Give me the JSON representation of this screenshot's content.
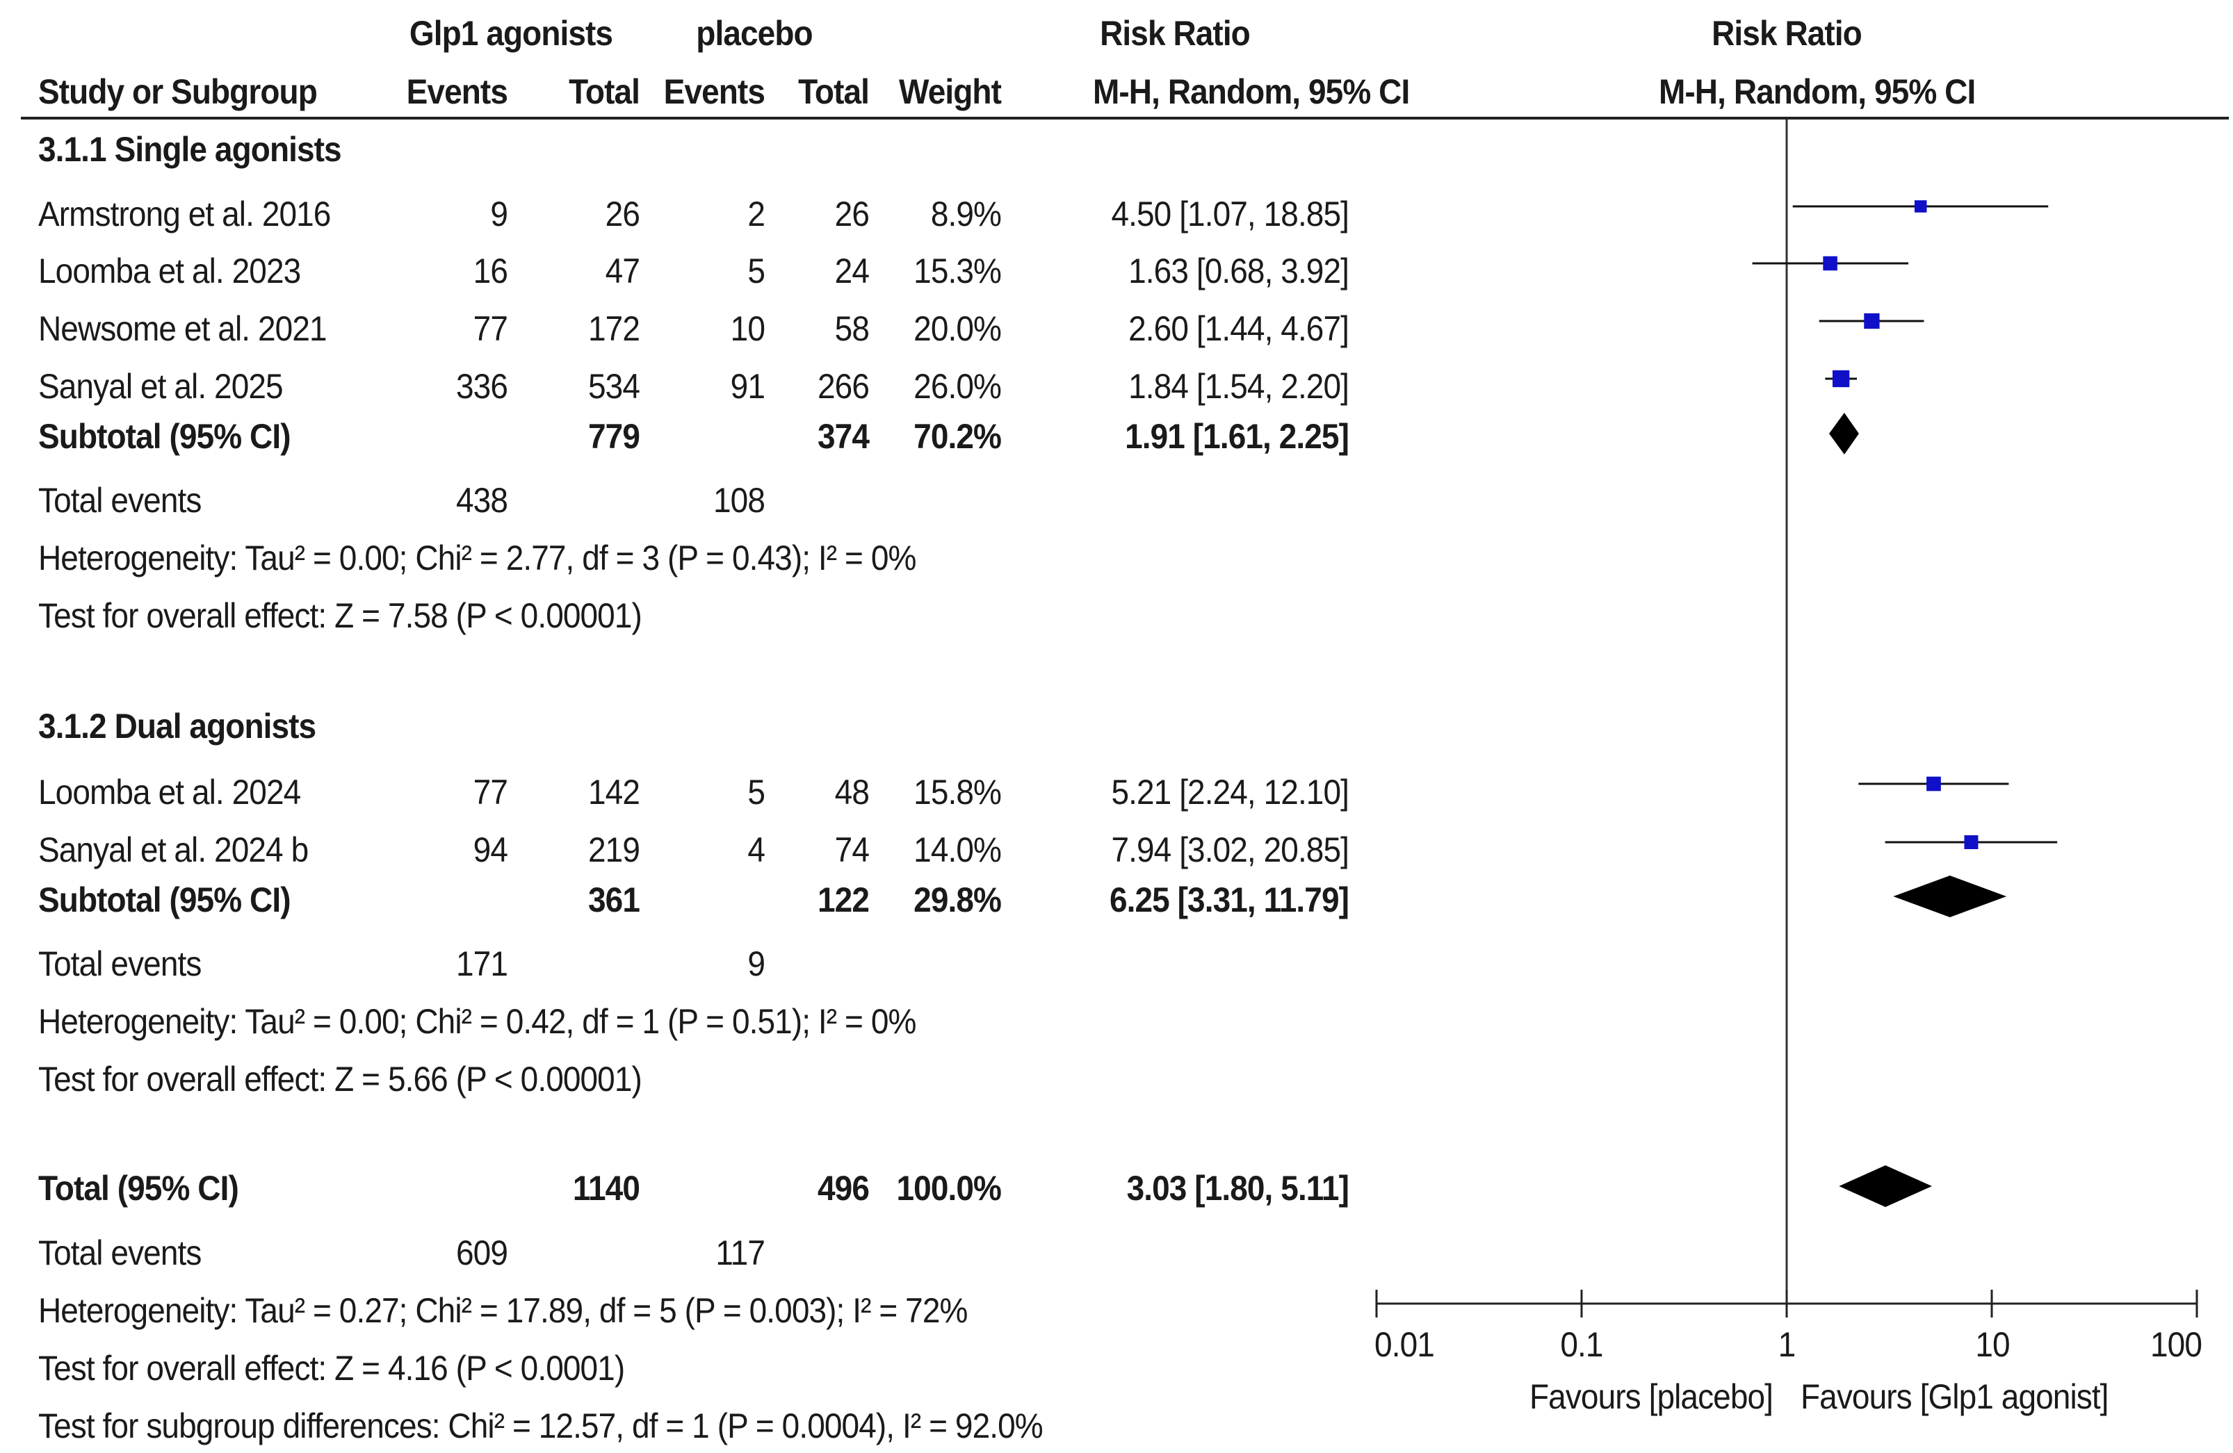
{
  "header": {
    "group1_label": "Glp1 agonists",
    "group2_label": "placebo",
    "effect_label": "Risk Ratio",
    "plot_label": "Risk Ratio",
    "col_study": "Study or Subgroup",
    "col_events1": "Events",
    "col_total1": "Total",
    "col_events2": "Events",
    "col_total2": "Total",
    "col_weight": "Weight",
    "col_method": "M-H, Random, 95% CI",
    "plot_method": "M-H, Random, 95% CI"
  },
  "subgroup1": {
    "title": "3.1.1 Single agonists",
    "studies": [
      {
        "study": "Armstrong et al. 2016",
        "e1": "9",
        "t1": "26",
        "e2": "2",
        "t2": "26",
        "weight": "8.9%",
        "ci": "4.50 [1.07, 18.85]"
      },
      {
        "study": "Loomba et al. 2023",
        "e1": "16",
        "t1": "47",
        "e2": "5",
        "t2": "24",
        "weight": "15.3%",
        "ci": "1.63 [0.68, 3.92]"
      },
      {
        "study": "Newsome et al. 2021",
        "e1": "77",
        "t1": "172",
        "e2": "10",
        "t2": "58",
        "weight": "20.0%",
        "ci": "2.60 [1.44, 4.67]"
      },
      {
        "study": "Sanyal et al. 2025",
        "e1": "336",
        "t1": "534",
        "e2": "91",
        "t2": "266",
        "weight": "26.0%",
        "ci": "1.84 [1.54, 2.20]"
      }
    ],
    "subtotal": {
      "label": "Subtotal (95% CI)",
      "t1": "779",
      "t2": "374",
      "weight": "70.2%",
      "ci": "1.91 [1.61, 2.25]"
    },
    "events": {
      "label": "Total events",
      "e1": "438",
      "e2": "108"
    },
    "heterogeneity": "Heterogeneity: Tau² = 0.00; Chi² = 2.77, df = 3 (P = 0.43); I² = 0%",
    "overall": "Test for overall effect: Z = 7.58 (P < 0.00001)"
  },
  "subgroup2": {
    "title": "3.1.2 Dual agonists",
    "studies": [
      {
        "study": "Loomba et al. 2024",
        "e1": "77",
        "t1": "142",
        "e2": "5",
        "t2": "48",
        "weight": "15.8%",
        "ci": "5.21 [2.24, 12.10]"
      },
      {
        "study": "Sanyal et al. 2024 b",
        "e1": "94",
        "t1": "219",
        "e2": "4",
        "t2": "74",
        "weight": "14.0%",
        "ci": "7.94 [3.02, 20.85]"
      }
    ],
    "subtotal": {
      "label": "Subtotal (95% CI)",
      "t1": "361",
      "t2": "122",
      "weight": "29.8%",
      "ci": "6.25 [3.31, 11.79]"
    },
    "events": {
      "label": "Total events",
      "e1": "171",
      "e2": "9"
    },
    "heterogeneity": "Heterogeneity: Tau² = 0.00; Chi² = 0.42, df = 1 (P = 0.51); I² = 0%",
    "overall": "Test for overall effect: Z = 5.66 (P < 0.00001)"
  },
  "total": {
    "label": "Total (95% CI)",
    "t1": "1140",
    "t2": "496",
    "weight": "100.0%",
    "ci": "3.03 [1.80, 5.11]",
    "events": {
      "label": "Total events",
      "e1": "609",
      "e2": "117"
    },
    "heterogeneity": "Heterogeneity: Tau² = 0.27; Chi² = 17.89, df = 5 (P = 0.003); I² = 72%",
    "overall": "Test for overall effect: Z = 4.16 (P < 0.0001)",
    "subgroup_diff": "Test for subgroup differences: Chi² = 12.57, df = 1 (P = 0.0004), I² = 92.0%"
  },
  "chart_data": {
    "type": "forest",
    "scale": "log",
    "xlim": [
      0.01,
      100
    ],
    "ticks": [
      0.01,
      0.1,
      1,
      10,
      100
    ],
    "tick_labels": [
      "0.01",
      "0.1",
      "1",
      "10",
      "100"
    ],
    "reference_line": 1,
    "favours_left": "Favours [placebo]",
    "favours_right": "Favours [Glp1 agonist]",
    "studies": [
      {
        "name": "Armstrong et al. 2016",
        "rr": 4.5,
        "lo": 1.07,
        "hi": 18.85,
        "weight": 8.9,
        "row": 0
      },
      {
        "name": "Loomba et al. 2023",
        "rr": 1.63,
        "lo": 0.68,
        "hi": 3.92,
        "weight": 15.3,
        "row": 1
      },
      {
        "name": "Newsome et al. 2021",
        "rr": 2.6,
        "lo": 1.44,
        "hi": 4.67,
        "weight": 20.0,
        "row": 2
      },
      {
        "name": "Sanyal et al. 2025",
        "rr": 1.84,
        "lo": 1.54,
        "hi": 2.2,
        "weight": 26.0,
        "row": 3
      },
      {
        "name": "Loomba et al. 2024",
        "rr": 5.21,
        "lo": 2.24,
        "hi": 12.1,
        "weight": 15.8,
        "row": 5
      },
      {
        "name": "Sanyal et al. 2024 b",
        "rr": 7.94,
        "lo": 3.02,
        "hi": 20.85,
        "weight": 14.0,
        "row": 6
      }
    ],
    "diamonds": [
      {
        "name": "Subtotal single agonists",
        "rr": 1.91,
        "lo": 1.61,
        "hi": 2.25,
        "row": 4
      },
      {
        "name": "Subtotal dual agonists",
        "rr": 6.25,
        "lo": 3.31,
        "hi": 11.79,
        "row": 7
      },
      {
        "name": "Total",
        "rr": 3.03,
        "lo": 1.8,
        "hi": 5.11,
        "row": 8
      }
    ]
  }
}
